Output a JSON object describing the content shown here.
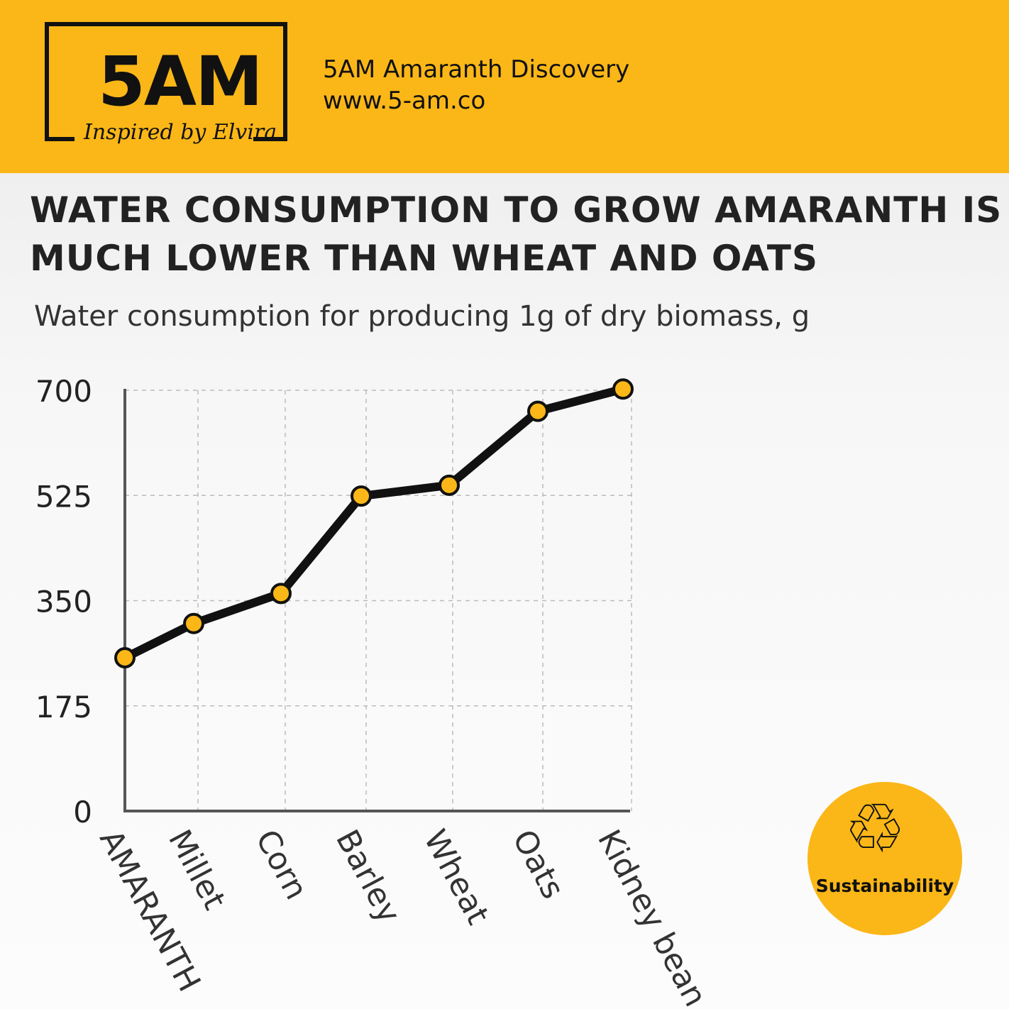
{
  "header": {
    "logo_text": "5AM",
    "logo_tagline": "Inspired by Elvira",
    "brand_name": "5AM Amaranth Discovery",
    "website": "www.5-am.co"
  },
  "badge": {
    "label": "Sustainability",
    "icon": "recycle-icon"
  },
  "colors": {
    "accent": "#fbb718",
    "line": "#111111"
  },
  "chart_data": {
    "type": "line",
    "title": "WATER CONSUMPTION TO GROW AMARANTH IS MUCH LOWER THAN WHEAT AND OATS",
    "subtitle": "Water consumption for producing 1g of dry biomass, g",
    "categories": [
      "AMARANTH",
      "Millet",
      "Corn",
      "Barley",
      "Wheat",
      "Oats",
      "Kidney bean"
    ],
    "values": [
      255,
      312,
      362,
      524,
      542,
      665,
      702
    ],
    "yticks": [
      "0",
      "175",
      "350",
      "525",
      "700"
    ],
    "ylim": [
      0,
      700
    ],
    "xlabel": "",
    "ylabel": "",
    "grid": true
  }
}
